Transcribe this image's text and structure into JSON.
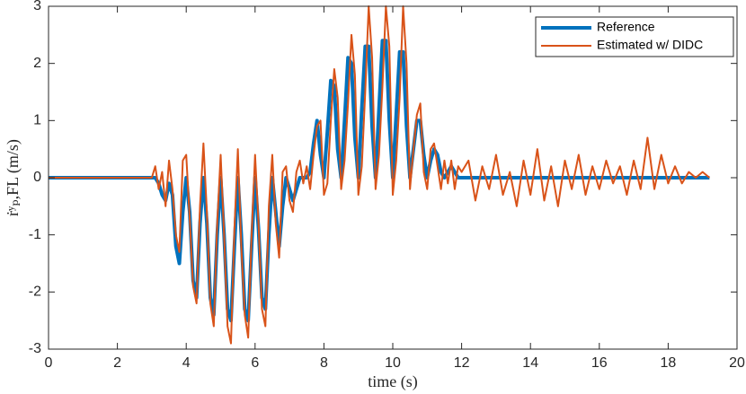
{
  "chart_data": {
    "type": "line",
    "x_label": "time (s)",
    "y_label": "ṙʸₚ,FL (m/s)",
    "x": [
      0,
      3.0,
      3.1,
      3.2,
      3.3,
      3.4,
      3.5,
      3.6,
      3.7,
      3.8,
      3.9,
      4.0,
      4.1,
      4.2,
      4.3,
      4.4,
      4.5,
      4.6,
      4.7,
      4.8,
      4.9,
      5.0,
      5.1,
      5.2,
      5.3,
      5.4,
      5.5,
      5.6,
      5.7,
      5.8,
      5.9,
      6.0,
      6.1,
      6.2,
      6.3,
      6.4,
      6.5,
      6.6,
      6.7,
      6.8,
      6.9,
      7.0,
      7.1,
      7.2,
      7.3,
      7.4,
      7.5,
      7.6,
      7.7,
      7.8,
      7.9,
      8.0,
      8.1,
      8.2,
      8.3,
      8.4,
      8.5,
      8.6,
      8.7,
      8.8,
      8.9,
      9.0,
      9.1,
      9.2,
      9.3,
      9.4,
      9.5,
      9.6,
      9.7,
      9.8,
      9.9,
      10.0,
      10.1,
      10.2,
      10.3,
      10.4,
      10.5,
      10.6,
      10.7,
      10.8,
      10.9,
      11.0,
      11.1,
      11.2,
      11.3,
      11.4,
      11.5,
      11.6,
      11.7,
      11.8,
      11.9,
      12.0,
      12.2,
      12.4,
      12.6,
      12.8,
      13.0,
      13.2,
      13.4,
      13.6,
      13.8,
      14.0,
      14.2,
      14.4,
      14.6,
      14.8,
      15.0,
      15.2,
      15.4,
      15.6,
      15.8,
      16.0,
      16.2,
      16.4,
      16.6,
      16.8,
      17.0,
      17.2,
      17.4,
      17.6,
      17.8,
      18.0,
      18.2,
      18.4,
      18.6,
      18.8,
      19.0,
      19.2
    ],
    "series": [
      {
        "name": "Reference",
        "color": "#0072BD",
        "values": [
          0,
          0,
          0,
          -0.1,
          -0.3,
          -0.4,
          -0.1,
          -0.3,
          -1.2,
          -1.5,
          -0.6,
          0,
          -0.6,
          -1.8,
          -2.1,
          -0.8,
          0,
          -0.8,
          -2.1,
          -2.4,
          -1.0,
          0,
          -1.0,
          -2.3,
          -2.5,
          -1.2,
          0,
          -1.0,
          -2.3,
          -2.5,
          -1.2,
          0,
          -0.9,
          -2.1,
          -2.3,
          -1.0,
          0,
          -0.6,
          -1.2,
          -0.5,
          0,
          -0.2,
          -0.4,
          -0.2,
          0,
          0,
          0,
          0.1,
          0.6,
          1.0,
          0.4,
          0,
          0.8,
          1.7,
          1.6,
          0.5,
          0,
          1.0,
          2.1,
          2.0,
          0.7,
          0,
          1.2,
          2.3,
          2.3,
          0.9,
          0,
          1.2,
          2.4,
          2.4,
          1.0,
          0,
          1.1,
          2.2,
          2.2,
          0.9,
          0,
          0.5,
          1.0,
          1.0,
          0.4,
          0,
          0.3,
          0.5,
          0.4,
          0.1,
          0,
          0.1,
          0.2,
          0.1,
          0,
          0,
          0,
          0,
          0,
          0,
          0,
          0,
          0,
          0,
          0,
          0,
          0,
          0,
          0,
          0,
          0,
          0,
          0,
          0,
          0,
          0,
          0,
          0,
          0,
          0,
          0,
          0,
          0,
          0,
          0,
          0,
          0,
          0,
          0,
          0,
          0,
          0
        ]
      },
      {
        "name": "Estimated w/ DIDC",
        "color": "#D95319",
        "values": [
          0,
          0,
          0.2,
          -0.2,
          0.1,
          -0.5,
          0.3,
          -0.2,
          -1.0,
          -1.3,
          0.3,
          0.4,
          -0.7,
          -1.9,
          -2.2,
          -0.5,
          0.6,
          -0.6,
          -2.2,
          -2.6,
          -0.8,
          0.4,
          -1.0,
          -2.6,
          -2.9,
          -0.9,
          0.5,
          -1.2,
          -2.4,
          -2.8,
          -1.0,
          0.4,
          -0.8,
          -2.3,
          -2.6,
          -0.5,
          0.4,
          -0.8,
          -1.4,
          0.1,
          0.2,
          -0.4,
          -0.6,
          0.1,
          0.3,
          -0.1,
          0.2,
          -0.2,
          0.4,
          0.9,
          1.0,
          -0.3,
          -0.1,
          1.0,
          1.9,
          1.4,
          -0.2,
          0.3,
          1.3,
          2.5,
          1.8,
          -0.3,
          0.2,
          1.5,
          3.0,
          2.1,
          -0.2,
          0.4,
          1.6,
          3.0,
          2.3,
          -0.3,
          0.3,
          1.4,
          3.0,
          2.0,
          -0.2,
          0.5,
          1.1,
          1.3,
          0.1,
          -0.2,
          0.5,
          0.6,
          0.2,
          -0.2,
          0.3,
          -0.1,
          0.3,
          -0.2,
          0.2,
          0.1,
          0.3,
          -0.4,
          0.2,
          -0.2,
          0.4,
          -0.3,
          0.1,
          -0.5,
          0.3,
          -0.3,
          0.5,
          -0.4,
          0.2,
          -0.5,
          0.3,
          -0.2,
          0.4,
          -0.3,
          0.2,
          -0.2,
          0.3,
          -0.1,
          0.2,
          -0.3,
          0.3,
          -0.2,
          0.7,
          -0.2,
          0.4,
          -0.1,
          0.2,
          -0.1,
          0.1,
          0,
          0.1,
          0
        ]
      }
    ],
    "xlim": [
      0,
      20
    ],
    "xticks": [
      0,
      2,
      4,
      6,
      8,
      10,
      12,
      14,
      16,
      18,
      20
    ],
    "ylim": [
      -3,
      3
    ],
    "yticks": [
      -3,
      -2,
      -1,
      0,
      1,
      2,
      3
    ],
    "legend": "northeast"
  }
}
